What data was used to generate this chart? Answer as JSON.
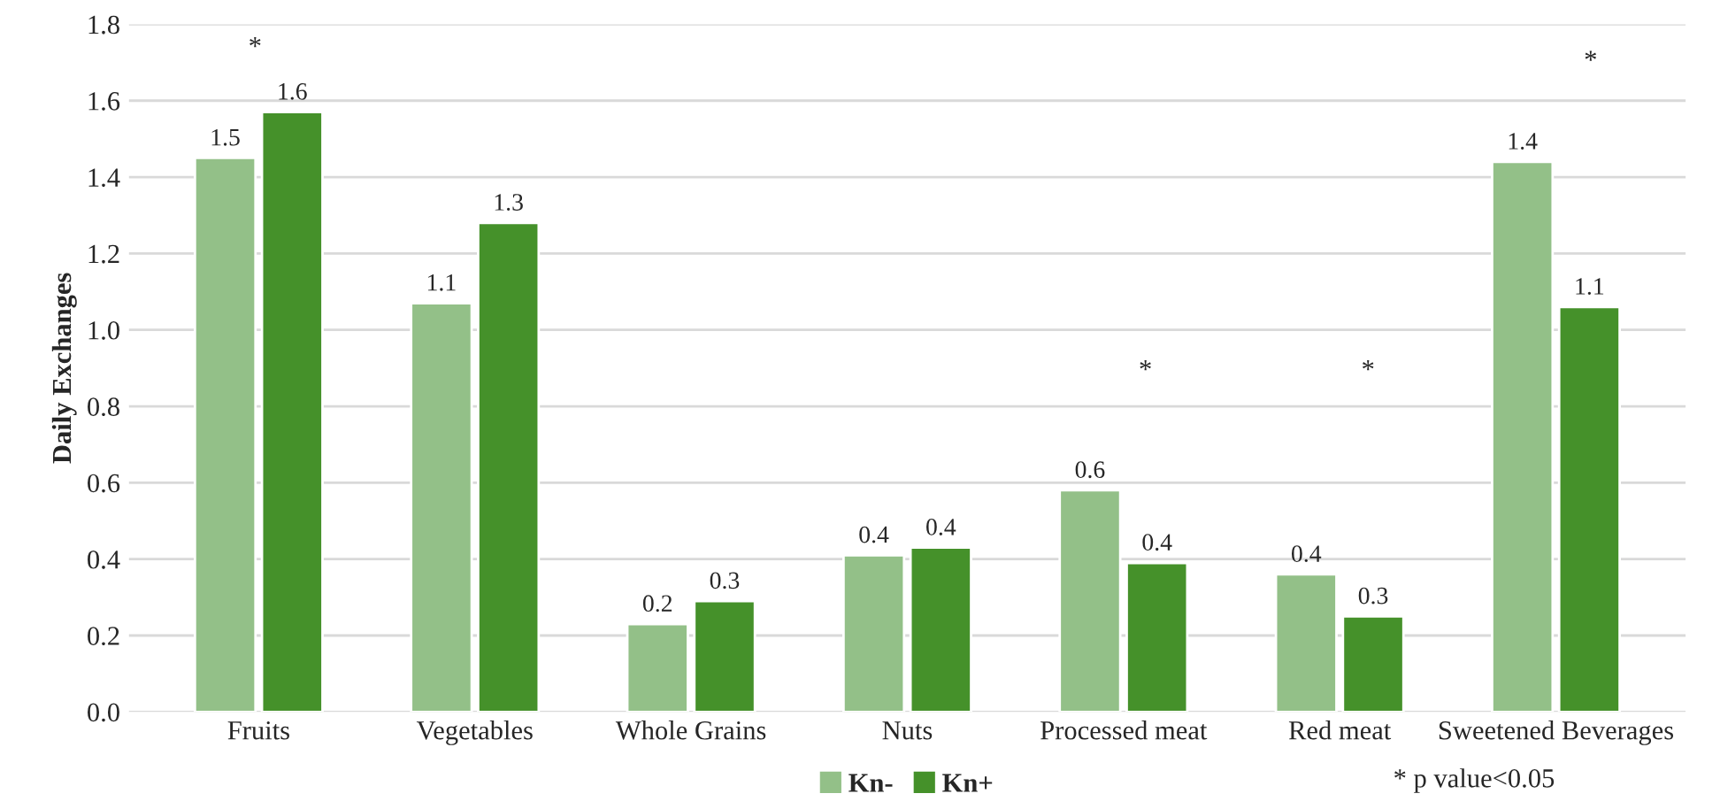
{
  "chart_data": {
    "type": "bar",
    "ylabel": "Daily Exchanges",
    "categories": [
      "Fruits",
      "Vegetables",
      "Whole Grains",
      "Nuts",
      "Processed meat",
      "Red meat",
      "Sweetened Beverages"
    ],
    "series": [
      {
        "name": "Kn-",
        "color": "#93c088",
        "values": [
          1.45,
          1.07,
          0.23,
          0.41,
          0.58,
          0.36,
          1.44
        ],
        "value_labels": [
          "1.5",
          "1.1",
          "0.2",
          "0.4",
          "0.6",
          "0.4",
          "1.4"
        ]
      },
      {
        "name": "Kn+",
        "color": "#45912a",
        "values": [
          1.57,
          1.28,
          0.29,
          0.43,
          0.39,
          0.25,
          1.06
        ],
        "value_labels": [
          "1.6",
          "1.3",
          "0.3",
          "0.4",
          "0.4",
          "0.3",
          "1.1"
        ]
      }
    ],
    "ylim": [
      0,
      1.8
    ],
    "yticks": [
      "0.0",
      0.2,
      0.4,
      0.6,
      0.8,
      "1.0",
      1.2,
      1.4,
      1.6,
      1.8
    ],
    "grid": "y",
    "legend": "bottom",
    "annotations": [
      "*",
      "*",
      "*",
      "*",
      "* p value<0.05"
    ]
  }
}
